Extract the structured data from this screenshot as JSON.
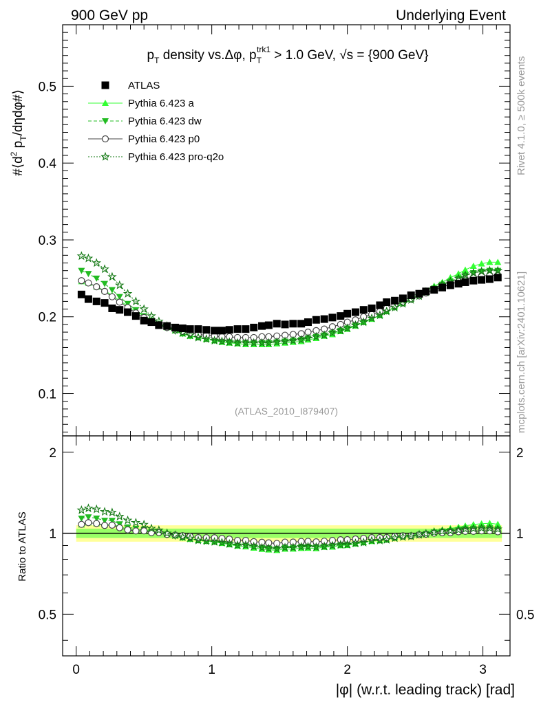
{
  "header": {
    "left": "900 GeV pp",
    "right": "Underlying Event"
  },
  "side_labels": {
    "rivet": "Rivet 4.1.0, ≥ 500k events",
    "mcplots": "mcplots.cern.ch [arXiv:2401.10621]"
  },
  "analysis_tag": "(ATLAS_2010_I879407)",
  "chart_data": {
    "type": "scatter",
    "title": "pT density vs.Δφ, pTtrk1 > 1.0 GeV, √s = {900 GeV}",
    "title_parts": {
      "a": "p",
      "a_sub": "T",
      "b": " density vs.Δφ, p",
      "b_sub": "T",
      "b_sup": "trk1",
      "c": " > 1.0 GeV, ",
      "d": "√s",
      "e": " = {900 GeV}"
    },
    "ylabel": "#⟨d² pT/dηdφ#⟩",
    "ylabel_parts": {
      "a": "#⟨d",
      "sup": "2",
      "b": " p",
      "sub": "T",
      "c": "/dηdφ#⟩"
    },
    "xlabel": "|φ| (w.r.t. leading track) [rad]",
    "ratio_ylabel": "Ratio to ATLAS",
    "xlim": [
      -0.1,
      3.2
    ],
    "ylim": [
      0.045,
      0.58
    ],
    "ratio_ylim": [
      0.35,
      2.3
    ],
    "x_ticks": [
      "0",
      "1",
      "2",
      "3"
    ],
    "y_ticks": [
      "0.1",
      "0.2",
      "0.3",
      "0.4",
      "0.5"
    ],
    "ratio_ticks": [
      "0.5",
      "1",
      "2"
    ],
    "x": [
      0.039,
      0.09,
      0.15,
      0.21,
      0.265,
      0.32,
      0.38,
      0.44,
      0.5,
      0.555,
      0.61,
      0.67,
      0.73,
      0.785,
      0.84,
      0.9,
      0.96,
      1.02,
      1.075,
      1.13,
      1.19,
      1.25,
      1.31,
      1.37,
      1.42,
      1.48,
      1.54,
      1.6,
      1.66,
      1.71,
      1.77,
      1.83,
      1.89,
      1.95,
      2.0,
      2.06,
      2.12,
      2.18,
      2.24,
      2.29,
      2.35,
      2.41,
      2.47,
      2.53,
      2.58,
      2.64,
      2.7,
      2.76,
      2.82,
      2.87,
      2.93,
      2.99,
      3.05,
      3.11
    ],
    "legend": [
      "ATLAS",
      "Pythia 6.423 a",
      "Pythia 6.423 dw",
      "Pythia 6.423 p0",
      "Pythia 6.423 pro-q2o"
    ],
    "series": [
      {
        "name": "ATLAS",
        "values": [
          0.229,
          0.223,
          0.22,
          0.218,
          0.211,
          0.209,
          0.206,
          0.201,
          0.195,
          0.193,
          0.189,
          0.188,
          0.186,
          0.185,
          0.184,
          0.184,
          0.183,
          0.182,
          0.182,
          0.183,
          0.184,
          0.184,
          0.186,
          0.188,
          0.189,
          0.191,
          0.19,
          0.191,
          0.191,
          0.193,
          0.196,
          0.197,
          0.199,
          0.201,
          0.204,
          0.206,
          0.209,
          0.211,
          0.215,
          0.219,
          0.221,
          0.224,
          0.228,
          0.23,
          0.233,
          0.235,
          0.238,
          0.241,
          0.243,
          0.245,
          0.247,
          0.248,
          0.249,
          0.251
        ]
      },
      {
        "name": "Pythia 6.423 a",
        "values": [
          0.246,
          0.244,
          0.239,
          0.234,
          0.228,
          0.221,
          0.214,
          0.207,
          0.201,
          0.196,
          0.191,
          0.186,
          0.182,
          0.178,
          0.175,
          0.173,
          0.171,
          0.169,
          0.167,
          0.166,
          0.165,
          0.164,
          0.164,
          0.164,
          0.164,
          0.165,
          0.166,
          0.167,
          0.168,
          0.17,
          0.172,
          0.175,
          0.177,
          0.181,
          0.184,
          0.188,
          0.193,
          0.197,
          0.202,
          0.207,
          0.213,
          0.218,
          0.223,
          0.229,
          0.234,
          0.24,
          0.245,
          0.251,
          0.256,
          0.261,
          0.266,
          0.269,
          0.271,
          0.271
        ]
      },
      {
        "name": "Pythia 6.423 dw",
        "values": [
          0.26,
          0.256,
          0.25,
          0.243,
          0.235,
          0.226,
          0.217,
          0.209,
          0.201,
          0.195,
          0.19,
          0.185,
          0.181,
          0.178,
          0.175,
          0.173,
          0.171,
          0.169,
          0.168,
          0.167,
          0.166,
          0.166,
          0.166,
          0.166,
          0.166,
          0.167,
          0.168,
          0.169,
          0.17,
          0.172,
          0.174,
          0.176,
          0.179,
          0.182,
          0.185,
          0.189,
          0.193,
          0.198,
          0.202,
          0.207,
          0.212,
          0.217,
          0.222,
          0.227,
          0.232,
          0.237,
          0.242,
          0.246,
          0.25,
          0.254,
          0.257,
          0.259,
          0.26,
          0.26
        ]
      },
      {
        "name": "Pythia 6.423 p0",
        "values": [
          0.247,
          0.244,
          0.239,
          0.233,
          0.226,
          0.219,
          0.212,
          0.205,
          0.199,
          0.194,
          0.19,
          0.186,
          0.183,
          0.181,
          0.179,
          0.177,
          0.176,
          0.175,
          0.174,
          0.174,
          0.173,
          0.173,
          0.173,
          0.174,
          0.174,
          0.175,
          0.176,
          0.177,
          0.178,
          0.18,
          0.182,
          0.184,
          0.187,
          0.19,
          0.193,
          0.196,
          0.2,
          0.203,
          0.207,
          0.211,
          0.215,
          0.219,
          0.223,
          0.227,
          0.231,
          0.235,
          0.239,
          0.242,
          0.246,
          0.249,
          0.251,
          0.253,
          0.254,
          0.254
        ]
      },
      {
        "name": "Pythia 6.423 pro-q2o",
        "values": [
          0.279,
          0.276,
          0.27,
          0.262,
          0.252,
          0.241,
          0.23,
          0.22,
          0.21,
          0.201,
          0.194,
          0.188,
          0.183,
          0.179,
          0.176,
          0.173,
          0.171,
          0.169,
          0.168,
          0.167,
          0.166,
          0.166,
          0.166,
          0.166,
          0.166,
          0.167,
          0.168,
          0.169,
          0.17,
          0.172,
          0.174,
          0.176,
          0.179,
          0.182,
          0.185,
          0.189,
          0.193,
          0.198,
          0.202,
          0.207,
          0.212,
          0.217,
          0.222,
          0.227,
          0.232,
          0.237,
          0.242,
          0.246,
          0.25,
          0.254,
          0.257,
          0.259,
          0.26,
          0.26
        ]
      }
    ],
    "ratio_band": {
      "inner": [
        0.96,
        1.04
      ],
      "outer": [
        0.93,
        1.07
      ]
    },
    "colors": {
      "data": "#000000",
      "a": "#33ff33",
      "dw": "#22bb22",
      "p0": "#444444",
      "pro_q2o": "#117711",
      "band_outer": "#ffff99",
      "band_inner": "#99ff66"
    }
  }
}
